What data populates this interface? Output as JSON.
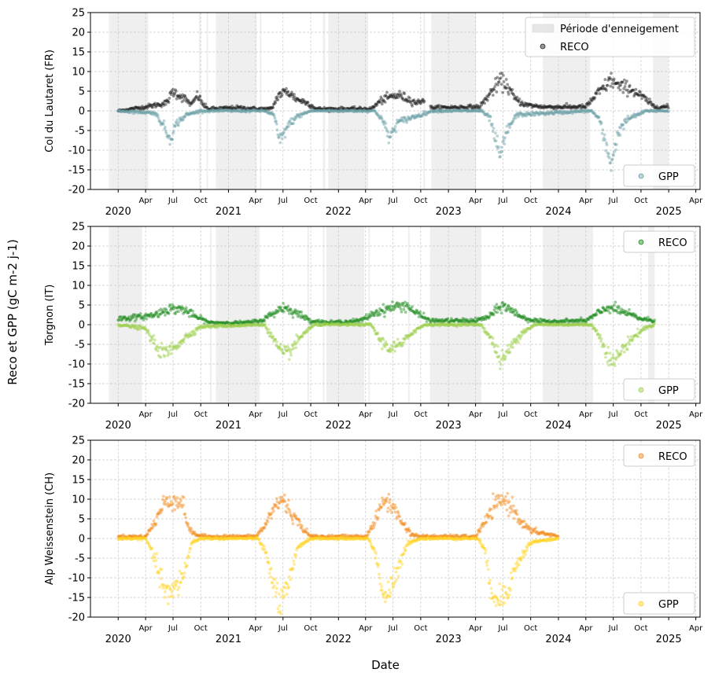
{
  "figure": {
    "shared_ylabel": "Reco et GPP (gC m-2 j-1)",
    "shared_xlabel": "Date",
    "month_labels": [
      "Apr",
      "Jul",
      "Oct"
    ],
    "year_labels": [
      "2020",
      "2021",
      "2022",
      "2023",
      "2024",
      "2025"
    ]
  },
  "chart_data": [
    {
      "type": "scatter",
      "ylabel": "Col du Lautaret (FR)",
      "ylim": [
        -20,
        25
      ],
      "yticks": [
        -20,
        -15,
        -10,
        -5,
        0,
        5,
        10,
        15,
        20,
        25
      ],
      "xlim": [
        "2019-10-01",
        "2025-04-15"
      ],
      "grid": true,
      "legend_upper": {
        "position": "top-right",
        "entries": [
          "Période d'enneigement",
          "RECO"
        ]
      },
      "legend_lower": {
        "position": "bottom-right",
        "entries": [
          "GPP"
        ]
      },
      "snow_periods": [
        [
          "2019-12-01",
          "2020-04-10"
        ],
        [
          "2020-09-25",
          "2020-10-01"
        ],
        [
          "2020-10-20",
          "2020-10-25"
        ],
        [
          "2020-11-20",
          "2021-04-05"
        ],
        [
          "2021-04-15",
          "2021-04-20"
        ],
        [
          "2021-11-10",
          "2021-11-18"
        ],
        [
          "2021-11-28",
          "2022-04-10"
        ],
        [
          "2022-10-10",
          "2022-10-15"
        ],
        [
          "2022-11-05",
          "2023-04-03"
        ],
        [
          "2023-11-10",
          "2024-04-15"
        ],
        [
          "2024-11-10",
          "2024-12-31"
        ]
      ],
      "reco_gap": [
        "2022-10-15",
        "2022-11-01"
      ],
      "series": [
        {
          "name": "RECO",
          "color": "#1a1a1a",
          "profile": [
            [
              "2020-01-01",
              0
            ],
            [
              "2020-04-01",
              1
            ],
            [
              "2020-06-10",
              2
            ],
            [
              "2020-07-01",
              5
            ],
            [
              "2020-08-10",
              3
            ],
            [
              "2020-09-01",
              1.5
            ],
            [
              "2020-09-20",
              4
            ],
            [
              "2020-10-10",
              1.5
            ],
            [
              "2020-10-25",
              0.5
            ],
            [
              "2021-02-01",
              0.8
            ],
            [
              "2021-04-10",
              0.5
            ],
            [
              "2021-05-25",
              0.5
            ],
            [
              "2021-06-15",
              4
            ],
            [
              "2021-07-15",
              5
            ],
            [
              "2021-08-15",
              3
            ],
            [
              "2021-09-20",
              2
            ],
            [
              "2021-10-20",
              0.5
            ],
            [
              "2022-04-20",
              0.5
            ],
            [
              "2022-05-20",
              2.5
            ],
            [
              "2022-06-20",
              3.5
            ],
            [
              "2022-07-20",
              4
            ],
            [
              "2022-08-20",
              3
            ],
            [
              "2022-09-20",
              2
            ],
            [
              "2022-10-10",
              3
            ],
            [
              "2022-11-01",
              0.8
            ],
            [
              "2023-04-15",
              1
            ],
            [
              "2023-05-15",
              4
            ],
            [
              "2023-06-20",
              7.5
            ],
            [
              "2023-07-10",
              7
            ],
            [
              "2023-08-10",
              3
            ],
            [
              "2023-09-15",
              1.5
            ],
            [
              "2023-11-15",
              1
            ],
            [
              "2024-01-15",
              1
            ],
            [
              "2024-04-01",
              1
            ],
            [
              "2024-05-05",
              4
            ],
            [
              "2024-06-01",
              6
            ],
            [
              "2024-06-25",
              8
            ],
            [
              "2024-07-20",
              6
            ],
            [
              "2024-08-20",
              6
            ],
            [
              "2024-10-15",
              3
            ],
            [
              "2024-11-15",
              1
            ],
            [
              "2025-01-01",
              1
            ]
          ]
        },
        {
          "name": "GPP",
          "color": "#6a9fa6",
          "profile": [
            [
              "2020-01-01",
              0
            ],
            [
              "2020-05-01",
              -0.5
            ],
            [
              "2020-05-25",
              -3
            ],
            [
              "2020-06-20",
              -7
            ],
            [
              "2020-07-15",
              -3
            ],
            [
              "2020-08-15",
              -1
            ],
            [
              "2020-10-01",
              0
            ],
            [
              "2021-05-01",
              0
            ],
            [
              "2021-06-01",
              -1
            ],
            [
              "2021-06-20",
              -8
            ],
            [
              "2021-07-15",
              -4
            ],
            [
              "2021-08-15",
              -1.5
            ],
            [
              "2021-10-01",
              0
            ],
            [
              "2022-05-01",
              0
            ],
            [
              "2022-05-25",
              -2
            ],
            [
              "2022-06-20",
              -7
            ],
            [
              "2022-07-15",
              -3
            ],
            [
              "2022-08-20",
              -2
            ],
            [
              "2022-10-01",
              -1
            ],
            [
              "2022-11-10",
              0
            ],
            [
              "2023-04-20",
              0
            ],
            [
              "2023-05-20",
              -2
            ],
            [
              "2023-06-20",
              -12
            ],
            [
              "2023-07-15",
              -5
            ],
            [
              "2023-08-15",
              -1
            ],
            [
              "2024-04-20",
              0
            ],
            [
              "2024-05-15",
              -2
            ],
            [
              "2024-06-10",
              -10
            ],
            [
              "2024-06-25",
              -13
            ],
            [
              "2024-07-20",
              -5
            ],
            [
              "2024-08-20",
              -2
            ],
            [
              "2024-10-20",
              0
            ],
            [
              "2025-01-01",
              0
            ]
          ]
        }
      ]
    },
    {
      "type": "scatter",
      "ylabel": "Torgnon (IT)",
      "ylim": [
        -20,
        25
      ],
      "yticks": [
        -20,
        -15,
        -10,
        -5,
        0,
        5,
        10,
        15,
        20,
        25
      ],
      "xlim": [
        "2019-10-01",
        "2025-04-15"
      ],
      "grid": true,
      "legend_upper": {
        "position": "top-right",
        "entries": [
          "RECO"
        ]
      },
      "legend_lower": {
        "position": "bottom-right",
        "entries": [
          "GPP"
        ]
      },
      "snow_periods": [
        [
          "2019-12-01",
          "2020-03-20"
        ],
        [
          "2020-11-01",
          "2020-11-05"
        ],
        [
          "2020-11-20",
          "2021-04-15"
        ],
        [
          "2021-09-20",
          "2021-09-23"
        ],
        [
          "2021-11-10",
          "2021-11-15"
        ],
        [
          "2021-11-22",
          "2022-03-28"
        ],
        [
          "2022-04-10",
          "2022-04-13"
        ],
        [
          "2022-08-20",
          "2022-08-23"
        ],
        [
          "2022-11-01",
          "2023-04-20"
        ],
        [
          "2023-11-10",
          "2024-04-25"
        ],
        [
          "2024-10-25",
          "2024-11-15"
        ]
      ],
      "series": [
        {
          "name": "RECO",
          "color": "#1a8a1a",
          "profile": [
            [
              "2020-01-01",
              1.5
            ],
            [
              "2020-03-20",
              2
            ],
            [
              "2020-05-01",
              2.5
            ],
            [
              "2020-06-15",
              4
            ],
            [
              "2020-08-01",
              4
            ],
            [
              "2020-09-15",
              2
            ],
            [
              "2020-11-01",
              0.5
            ],
            [
              "2021-03-01",
              0.5
            ],
            [
              "2021-04-20",
              1
            ],
            [
              "2021-06-01",
              3
            ],
            [
              "2021-07-01",
              4.5
            ],
            [
              "2021-08-15",
              3
            ],
            [
              "2021-10-01",
              1
            ],
            [
              "2021-12-01",
              0.5
            ],
            [
              "2022-03-15",
              1
            ],
            [
              "2022-05-01",
              3
            ],
            [
              "2022-07-01",
              4.5
            ],
            [
              "2022-08-15",
              5
            ],
            [
              "2022-09-15",
              3
            ],
            [
              "2022-11-01",
              1
            ],
            [
              "2023-04-01",
              1
            ],
            [
              "2023-05-15",
              2
            ],
            [
              "2023-07-01",
              5
            ],
            [
              "2023-08-10",
              3
            ],
            [
              "2023-09-15",
              1.5
            ],
            [
              "2023-11-01",
              0.8
            ],
            [
              "2024-04-01",
              1
            ],
            [
              "2024-05-15",
              3
            ],
            [
              "2024-06-15",
              4.5
            ],
            [
              "2024-08-10",
              3
            ],
            [
              "2024-10-01",
              1.5
            ],
            [
              "2024-11-15",
              1
            ]
          ]
        },
        {
          "name": "GPP",
          "color": "#9ccf4a",
          "profile": [
            [
              "2020-01-01",
              0
            ],
            [
              "2020-04-01",
              -1
            ],
            [
              "2020-05-01",
              -5
            ],
            [
              "2020-06-01",
              -7.5
            ],
            [
              "2020-07-01",
              -6
            ],
            [
              "2020-08-15",
              -3
            ],
            [
              "2020-10-01",
              -0.5
            ],
            [
              "2021-05-01",
              0
            ],
            [
              "2021-06-01",
              -4
            ],
            [
              "2021-07-01",
              -8
            ],
            [
              "2021-08-01",
              -6
            ],
            [
              "2021-09-10",
              -2
            ],
            [
              "2021-10-15",
              0
            ],
            [
              "2022-04-20",
              0
            ],
            [
              "2022-05-20",
              -4
            ],
            [
              "2022-06-20",
              -6
            ],
            [
              "2022-08-01",
              -5
            ],
            [
              "2022-09-01",
              -2
            ],
            [
              "2022-10-15",
              0
            ],
            [
              "2023-04-20",
              0
            ],
            [
              "2023-05-25",
              -4
            ],
            [
              "2023-06-25",
              -9.5
            ],
            [
              "2023-07-25",
              -6
            ],
            [
              "2023-09-01",
              -2
            ],
            [
              "2023-10-15",
              0
            ],
            [
              "2024-04-20",
              0
            ],
            [
              "2024-05-25",
              -4
            ],
            [
              "2024-06-25",
              -10
            ],
            [
              "2024-07-25",
              -7
            ],
            [
              "2024-08-25",
              -4
            ],
            [
              "2024-10-10",
              -1
            ],
            [
              "2024-11-15",
              0
            ]
          ]
        }
      ]
    },
    {
      "type": "scatter",
      "ylabel": "Alp Weissenstein (CH)",
      "ylim": [
        -20,
        25
      ],
      "yticks": [
        -20,
        -15,
        -10,
        -5,
        0,
        5,
        10,
        15,
        20,
        25
      ],
      "xlim": [
        "2019-10-01",
        "2025-04-15"
      ],
      "grid": true,
      "legend_upper": {
        "position": "top-right",
        "entries": [
          "RECO"
        ]
      },
      "legend_lower": {
        "position": "bottom-right",
        "entries": [
          "GPP"
        ]
      },
      "snow_periods": [],
      "series": [
        {
          "name": "RECO",
          "color": "#f28a1a",
          "profile": [
            [
              "2020-01-01",
              0.5
            ],
            [
              "2020-04-01",
              0.5
            ],
            [
              "2020-05-01",
              4
            ],
            [
              "2020-06-01",
              9
            ],
            [
              "2020-07-01",
              10
            ],
            [
              "2020-08-01",
              9
            ],
            [
              "2020-08-25",
              2
            ],
            [
              "2020-09-15",
              1
            ],
            [
              "2020-10-15",
              0.5
            ],
            [
              "2021-04-01",
              0.5
            ],
            [
              "2021-05-01",
              3
            ],
            [
              "2021-06-01",
              8
            ],
            [
              "2021-07-01",
              10
            ],
            [
              "2021-08-01",
              6
            ],
            [
              "2021-09-01",
              3
            ],
            [
              "2021-10-01",
              0.5
            ],
            [
              "2022-04-01",
              0.5
            ],
            [
              "2022-05-01",
              4
            ],
            [
              "2022-06-01",
              10
            ],
            [
              "2022-07-01",
              8
            ],
            [
              "2022-08-01",
              4
            ],
            [
              "2022-09-01",
              1
            ],
            [
              "2022-10-01",
              0.5
            ],
            [
              "2023-04-01",
              0.5
            ],
            [
              "2023-05-01",
              4
            ],
            [
              "2023-06-01",
              8
            ],
            [
              "2023-07-01",
              10
            ],
            [
              "2023-08-01",
              8
            ],
            [
              "2023-09-01",
              4
            ],
            [
              "2023-10-01",
              2
            ],
            [
              "2023-12-31",
              0.5
            ]
          ]
        },
        {
          "name": "GPP",
          "color": "#ffd21f",
          "profile": [
            [
              "2020-01-01",
              0
            ],
            [
              "2020-04-01",
              0
            ],
            [
              "2020-04-20",
              -3
            ],
            [
              "2020-05-20",
              -10
            ],
            [
              "2020-06-15",
              -15
            ],
            [
              "2020-07-15",
              -12
            ],
            [
              "2020-08-10",
              -8
            ],
            [
              "2020-09-01",
              -1
            ],
            [
              "2020-10-01",
              0
            ],
            [
              "2021-04-10",
              0
            ],
            [
              "2021-05-01",
              -3
            ],
            [
              "2021-06-01",
              -12
            ],
            [
              "2021-06-25",
              -17
            ],
            [
              "2021-07-20",
              -12
            ],
            [
              "2021-08-20",
              -2
            ],
            [
              "2021-10-01",
              0
            ],
            [
              "2022-04-10",
              0
            ],
            [
              "2022-05-01",
              -3
            ],
            [
              "2022-06-01",
              -15
            ],
            [
              "2022-07-01",
              -12
            ],
            [
              "2022-08-01",
              -5
            ],
            [
              "2022-08-20",
              -1
            ],
            [
              "2022-10-01",
              0
            ],
            [
              "2023-04-10",
              0
            ],
            [
              "2023-05-01",
              -3
            ],
            [
              "2023-05-20",
              -12
            ],
            [
              "2023-06-20",
              -16
            ],
            [
              "2023-07-20",
              -12
            ],
            [
              "2023-08-20",
              -6
            ],
            [
              "2023-10-01",
              -1
            ],
            [
              "2023-12-31",
              0
            ]
          ]
        }
      ]
    }
  ]
}
